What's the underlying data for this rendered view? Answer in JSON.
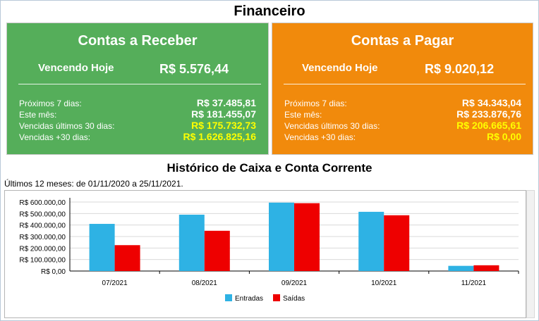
{
  "header": {
    "title": "Financeiro"
  },
  "receber": {
    "title": "Contas a Receber",
    "hoje_label": "Vencendo Hoje",
    "hoje_value": "R$ 5.576,44",
    "rows": [
      {
        "label": "Próximos 7 dias:",
        "value": "R$ 37.485,81",
        "color": "#ffffff"
      },
      {
        "label": "Este mês:",
        "value": "R$ 181.455,07",
        "color": "#ffffff"
      },
      {
        "label": "Vencidas últimos 30 dias:",
        "value": "R$ 175.732,73",
        "color": "#ffff00"
      },
      {
        "label": "Vencidas +30 dias:",
        "value": "R$ 1.626.825,16",
        "color": "#ffff00"
      }
    ],
    "bg_color": "#55ae5a"
  },
  "pagar": {
    "title": "Contas a Pagar",
    "hoje_label": "Vencendo Hoje",
    "hoje_value": "R$ 9.020,12",
    "rows": [
      {
        "label": "Próximos 7 dias:",
        "value": "R$ 34.343,04",
        "color": "#ffffff"
      },
      {
        "label": "Este mês:",
        "value": "R$ 233.876,76",
        "color": "#ffffff"
      },
      {
        "label": "Vencidas últimos 30 dias:",
        "value": "R$ 206.665,61",
        "color": "#ffff00"
      },
      {
        "label": "Vencidas +30 dias:",
        "value": "R$ 0,00",
        "color": "#ffff00"
      }
    ],
    "bg_color": "#f18a0c"
  },
  "historico": {
    "title": "Histórico de Caixa e Conta Corrente",
    "subtitle": "Últimos 12 meses: de 01/11/2020 a 25/11/2021."
  },
  "chart_data": {
    "type": "bar",
    "title": "",
    "xlabel": "",
    "ylabel": "",
    "categories": [
      "07/2021",
      "08/2021",
      "09/2021",
      "10/2021",
      "11/2021"
    ],
    "series": [
      {
        "name": "Entradas",
        "color": "#2eb2e4",
        "values": [
          410000,
          490000,
          595000,
          515000,
          45000
        ]
      },
      {
        "name": "Saídas",
        "color": "#ee0000",
        "values": [
          225000,
          350000,
          590000,
          485000,
          50000
        ]
      }
    ],
    "ylim": [
      0,
      600000
    ],
    "yticks": [
      0,
      100000,
      200000,
      300000,
      400000,
      500000,
      600000
    ],
    "ytick_labels": [
      "R$ 0,00",
      "R$ 100.000,00",
      "R$ 200.000,00",
      "R$ 300.000,00",
      "R$ 400.000,00",
      "R$ 500.000,00",
      "R$ 600.000,00"
    ],
    "grid": true,
    "legend_position": "bottom-center"
  }
}
